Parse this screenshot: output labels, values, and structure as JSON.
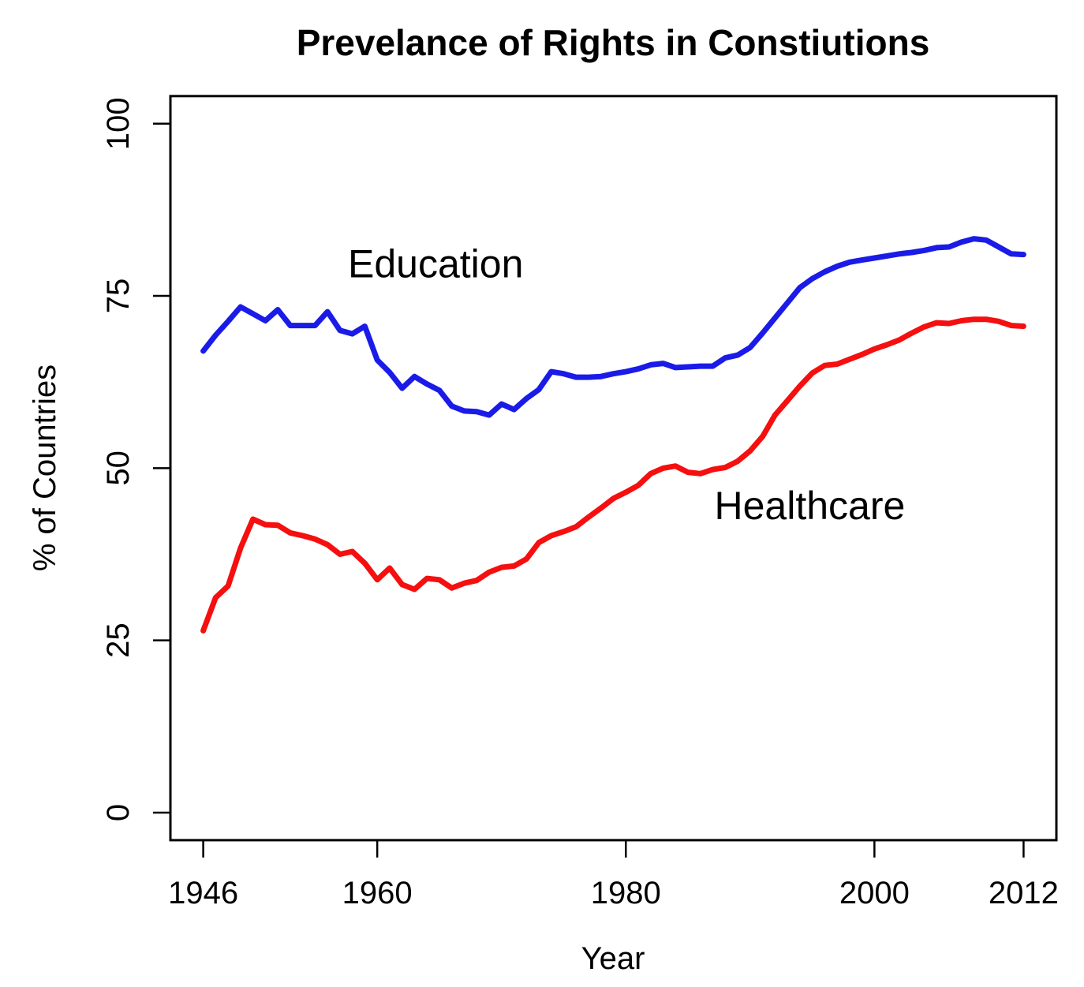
{
  "page": {
    "background": "#ffffff"
  },
  "chart_data": {
    "type": "line",
    "title": "Prevelance of Rights in Constiutions",
    "xlabel": "Year",
    "ylabel": "% of Countries",
    "x_ticks": [
      1946,
      1960,
      1980,
      2000,
      2012
    ],
    "y_ticks": [
      0,
      25,
      50,
      75,
      100
    ],
    "xlim": [
      1943.36,
      2014.64
    ],
    "ylim": [
      -4,
      104
    ],
    "grid": false,
    "legend": "inline-labels",
    "x": [
      1946,
      1947,
      1948,
      1949,
      1950,
      1951,
      1952,
      1953,
      1954,
      1955,
      1956,
      1957,
      1958,
      1959,
      1960,
      1961,
      1962,
      1963,
      1964,
      1965,
      1966,
      1967,
      1968,
      1969,
      1970,
      1971,
      1972,
      1973,
      1974,
      1975,
      1976,
      1977,
      1978,
      1979,
      1980,
      1981,
      1982,
      1983,
      1984,
      1985,
      1986,
      1987,
      1988,
      1989,
      1990,
      1991,
      1992,
      1993,
      1994,
      1995,
      1996,
      1997,
      1998,
      1999,
      2000,
      2001,
      2002,
      2003,
      2004,
      2005,
      2006,
      2007,
      2008,
      2009,
      2010,
      2011,
      2012
    ],
    "series": [
      {
        "name": "Education",
        "color": "#1b1be8",
        "values": [
          67.0,
          69.3,
          71.3,
          73.4,
          72.4,
          71.4,
          73.0,
          70.7,
          70.7,
          70.7,
          72.7,
          70.0,
          69.5,
          70.6,
          65.7,
          63.9,
          61.6,
          63.3,
          62.2,
          61.3,
          59.0,
          58.3,
          58.2,
          57.7,
          59.3,
          58.5,
          60.1,
          61.4,
          64.0,
          63.7,
          63.2,
          63.2,
          63.3,
          63.7,
          64.0,
          64.4,
          65.0,
          65.2,
          64.6,
          64.7,
          64.8,
          64.8,
          66.0,
          66.4,
          67.5,
          69.6,
          71.8,
          74.0,
          76.2,
          77.5,
          78.5,
          79.3,
          79.9,
          80.2,
          80.5,
          80.8,
          81.1,
          81.3,
          81.6,
          82.0,
          82.1,
          82.8,
          83.3,
          83.1,
          82.1,
          81.1,
          81.0
        ]
      },
      {
        "name": "Healthcare",
        "color": "#f50f0f",
        "values": [
          26.4,
          31.2,
          32.9,
          38.4,
          42.6,
          41.8,
          41.7,
          40.6,
          40.2,
          39.7,
          38.9,
          37.5,
          37.9,
          36.2,
          33.8,
          35.5,
          33.1,
          32.4,
          34.0,
          33.8,
          32.6,
          33.3,
          33.7,
          34.9,
          35.6,
          35.8,
          36.8,
          39.2,
          40.2,
          40.8,
          41.5,
          42.9,
          44.2,
          45.6,
          46.5,
          47.5,
          49.2,
          50.0,
          50.3,
          49.4,
          49.2,
          49.8,
          50.1,
          51.0,
          52.5,
          54.6,
          57.7,
          59.8,
          61.9,
          63.8,
          64.9,
          65.1,
          65.8,
          66.5,
          67.3,
          67.9,
          68.6,
          69.6,
          70.5,
          71.1,
          71.0,
          71.4,
          71.6,
          71.6,
          71.3,
          70.7,
          70.6
        ]
      }
    ],
    "annotations": [
      {
        "text": "Education",
        "x": 1964.7,
        "y": 77.7,
        "color": "#1b1be8"
      },
      {
        "text": "Healthcare",
        "x": 1994.8,
        "y": 42.6,
        "color": "#f50f0f"
      }
    ]
  }
}
